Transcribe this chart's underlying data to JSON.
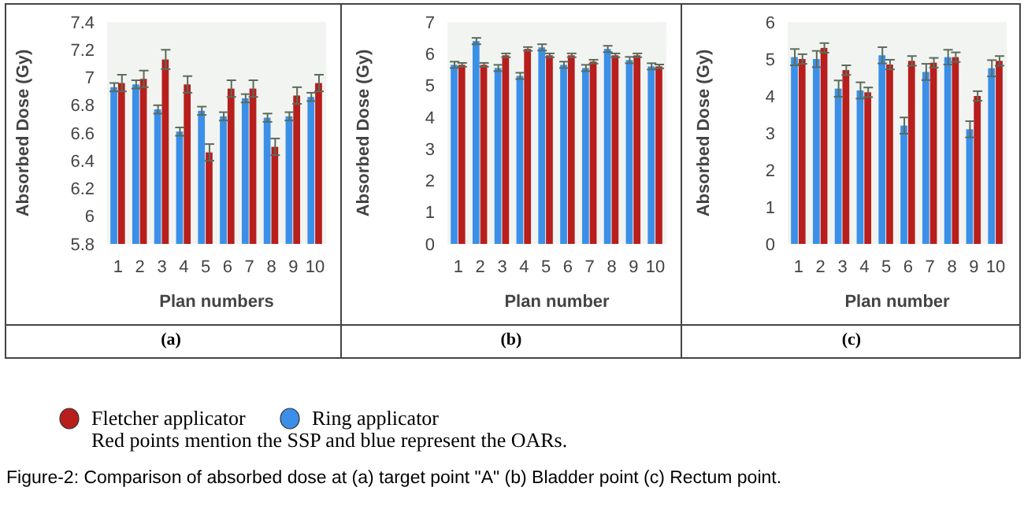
{
  "chart_data": [
    {
      "type": "bar",
      "ylabel": "Absorbed Dose (Gy)",
      "xlabel": "Plan numbers",
      "categories": [
        "1",
        "2",
        "3",
        "4",
        "5",
        "6",
        "7",
        "8",
        "9",
        "10"
      ],
      "ylim": [
        5.8,
        7.4
      ],
      "yticks": [
        5.8,
        6,
        6.2,
        6.4,
        6.6,
        6.8,
        7,
        7.2,
        7.4
      ],
      "legend": "bottom",
      "annotations": [
        "(a)",
        "Red points mention the SSP and blue represent the OARs.",
        "Figure-2: Comparison of absorbed dose at (a) target point \"A\" (b) Bladder point (c) Rectum point."
      ],
      "series": [
        {
          "name": "Ring applicator",
          "color": "#3b8fe8",
          "values": [
            6.93,
            6.95,
            6.77,
            6.61,
            6.76,
            6.72,
            6.85,
            6.71,
            6.72,
            6.86
          ],
          "errors": [
            0.03,
            0.03,
            0.03,
            0.03,
            0.03,
            0.03,
            0.03,
            0.03,
            0.03,
            0.03
          ]
        },
        {
          "name": "Fletcher applicator",
          "color": "#b81e1c",
          "values": [
            6.96,
            6.99,
            7.13,
            6.95,
            6.46,
            6.92,
            6.92,
            6.5,
            6.87,
            6.96
          ],
          "errors": [
            0.06,
            0.06,
            0.07,
            0.06,
            0.06,
            0.06,
            0.06,
            0.06,
            0.06,
            0.06
          ]
        }
      ]
    },
    {
      "type": "bar",
      "ylabel": "Absorbed Dose (Gy)",
      "xlabel": "Plan number",
      "categories": [
        "1",
        "2",
        "3",
        "4",
        "5",
        "6",
        "7",
        "8",
        "9",
        "10"
      ],
      "ylim": [
        0,
        7
      ],
      "yticks": [
        0,
        1,
        2,
        3,
        4,
        5,
        6,
        7
      ],
      "annotations": [
        "(b)"
      ],
      "series": [
        {
          "color": "#3b8fe8",
          "values": [
            5.65,
            6.4,
            5.55,
            5.3,
            6.2,
            5.65,
            5.55,
            6.15,
            5.8,
            5.6
          ],
          "errors": [
            0.1,
            0.1,
            0.1,
            0.1,
            0.1,
            0.1,
            0.1,
            0.1,
            0.1,
            0.1
          ]
        },
        {
          "color": "#b81e1c",
          "values": [
            5.65,
            5.65,
            5.95,
            6.15,
            5.95,
            5.95,
            5.75,
            5.95,
            5.95,
            5.6
          ],
          "errors": [
            0.06,
            0.06,
            0.06,
            0.06,
            0.06,
            0.06,
            0.06,
            0.06,
            0.06,
            0.06
          ]
        }
      ]
    },
    {
      "type": "bar",
      "ylabel": "Absorbed Dose (Gy)",
      "xlabel": "Plan number",
      "categories": [
        "1",
        "2",
        "3",
        "4",
        "5",
        "6",
        "7",
        "8",
        "9",
        "10"
      ],
      "ylim": [
        0,
        6
      ],
      "yticks": [
        0,
        1,
        2,
        3,
        4,
        5,
        6
      ],
      "annotations": [
        "(c)"
      ],
      "series": [
        {
          "color": "#3b8fe8",
          "values": [
            5.05,
            5.0,
            4.2,
            4.15,
            5.1,
            3.2,
            4.65,
            5.05,
            3.1,
            4.75
          ],
          "errors": [
            0.22,
            0.22,
            0.22,
            0.22,
            0.22,
            0.22,
            0.22,
            0.2,
            0.22,
            0.22
          ]
        },
        {
          "color": "#b81e1c",
          "values": [
            5.0,
            5.3,
            4.7,
            4.1,
            4.85,
            4.95,
            4.9,
            5.05,
            4.0,
            4.95
          ],
          "errors": [
            0.13,
            0.13,
            0.13,
            0.13,
            0.13,
            0.13,
            0.13,
            0.13,
            0.13,
            0.13
          ]
        }
      ]
    }
  ]
}
